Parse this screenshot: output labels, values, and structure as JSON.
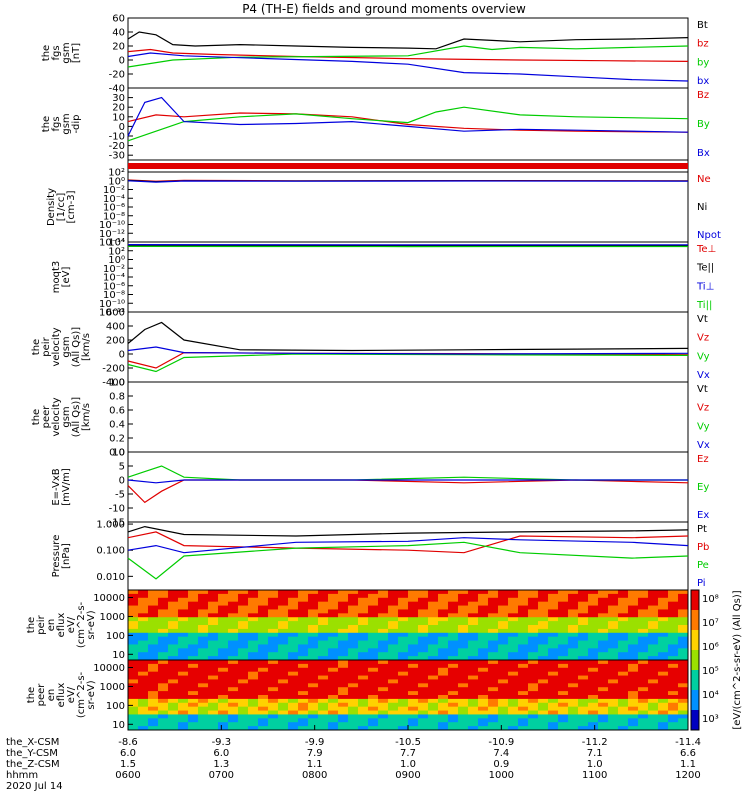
{
  "title": "P4 (TH-E) fields and ground moments overview",
  "chart_data": [
    {
      "type": "line",
      "ylabel": [
        "the",
        "fgs",
        "gsm",
        "[nT]"
      ],
      "ylim": [
        -40,
        60
      ],
      "ticks": [
        "60",
        "40",
        "20",
        "0",
        "-20",
        "-40"
      ],
      "tick_values": [
        60,
        40,
        20,
        0,
        -20,
        -40
      ],
      "series": [
        {
          "name": "Bt",
          "color": "#000000",
          "x": [
            0,
            0.02,
            0.05,
            0.08,
            0.12,
            0.2,
            0.3,
            0.4,
            0.5,
            0.55,
            0.6,
            0.65,
            0.7,
            0.8,
            0.9,
            1.0
          ],
          "y": [
            30,
            40,
            36,
            22,
            20,
            22,
            20,
            18,
            17,
            16,
            30,
            28,
            26,
            29,
            30,
            32
          ]
        },
        {
          "name": "bz",
          "color": "#e00000",
          "x": [
            0,
            0.04,
            0.08,
            0.15,
            0.3,
            0.5,
            0.7,
            0.85,
            1.0
          ],
          "y": [
            12,
            15,
            10,
            8,
            5,
            2,
            0,
            -1,
            -2
          ]
        },
        {
          "name": "by",
          "color": "#00cc00",
          "x": [
            0,
            0.04,
            0.08,
            0.2,
            0.35,
            0.5,
            0.6,
            0.65,
            0.7,
            0.8,
            0.9,
            1.0
          ],
          "y": [
            -10,
            -5,
            0,
            4,
            5,
            6,
            20,
            15,
            18,
            16,
            18,
            20
          ]
        },
        {
          "name": "bx",
          "color": "#0000dd",
          "x": [
            0,
            0.04,
            0.1,
            0.25,
            0.4,
            0.5,
            0.6,
            0.7,
            0.8,
            0.9,
            1.0
          ],
          "y": [
            5,
            10,
            6,
            2,
            -2,
            -6,
            -18,
            -20,
            -24,
            -28,
            -30
          ]
        }
      ]
    },
    {
      "type": "line",
      "ylabel": [
        "the",
        "fgs",
        "gsm",
        "-dip"
      ],
      "ylim": [
        -35,
        40
      ],
      "ticks": [
        "30",
        "20",
        "10",
        "0",
        "-10",
        "-20",
        "-30"
      ],
      "tick_values": [
        30,
        20,
        10,
        0,
        -10,
        -20,
        -30
      ],
      "series": [
        {
          "name": "Bz",
          "color": "#e00000",
          "x": [
            0,
            0.05,
            0.1,
            0.2,
            0.3,
            0.4,
            0.5,
            0.6,
            0.7,
            0.8,
            1.0
          ],
          "y": [
            5,
            12,
            10,
            14,
            13,
            10,
            2,
            -2,
            -4,
            -5,
            -6
          ]
        },
        {
          "name": "By",
          "color": "#00cc00",
          "x": [
            0,
            0.05,
            0.1,
            0.2,
            0.3,
            0.4,
            0.5,
            0.55,
            0.6,
            0.7,
            0.8,
            1.0
          ],
          "y": [
            -15,
            -5,
            5,
            10,
            13,
            8,
            4,
            15,
            20,
            12,
            10,
            8
          ]
        },
        {
          "name": "Bx",
          "color": "#0000dd",
          "x": [
            0,
            0.03,
            0.06,
            0.1,
            0.2,
            0.3,
            0.4,
            0.5,
            0.6,
            0.7,
            0.8,
            1.0
          ],
          "y": [
            -10,
            25,
            30,
            5,
            2,
            3,
            5,
            0,
            -5,
            -3,
            -4,
            -6
          ]
        }
      ]
    },
    {
      "type": "line",
      "ylabel": [
        "Density",
        "[1/cc]",
        "[cm-3]"
      ],
      "ylog": true,
      "ylim": [
        1e-14,
        100
      ],
      "ticks": [
        "10²",
        "10⁰",
        "10⁻²",
        "10⁻⁴",
        "10⁻⁶",
        "10⁻⁸",
        "10⁻¹⁰",
        "10⁻¹²",
        "10⁻¹⁴"
      ],
      "tick_values": [
        100,
        1,
        0.01,
        0.0001,
        1e-06,
        1e-08,
        1e-10,
        1e-12,
        1e-14
      ],
      "series": [
        {
          "name": "Ne",
          "color": "#e00000",
          "x": [
            0,
            0.05,
            0.1,
            0.3,
            0.6,
            1.0
          ],
          "y": [
            1.5,
            0.8,
            1.2,
            1.0,
            1.1,
            1.0
          ]
        },
        {
          "name": "Ni",
          "color": "#000000",
          "x": [
            0,
            0.05,
            0.1,
            0.3,
            0.6,
            1.0
          ],
          "y": [
            1.2,
            0.6,
            1.0,
            0.9,
            1.0,
            0.9
          ]
        },
        {
          "name": "Npot",
          "color": "#0000dd",
          "x": [
            0,
            0.05,
            0.1,
            0.3,
            0.6,
            1.0
          ],
          "y": [
            1.0,
            0.5,
            0.9,
            0.8,
            0.9,
            0.8
          ]
        }
      ]
    },
    {
      "type": "line",
      "ylabel": [
        "moqt3",
        "[eV]"
      ],
      "ylog": true,
      "ylim": [
        1e-12,
        10000
      ],
      "ticks": [
        "10⁴",
        "10²",
        "10⁰",
        "10⁻²",
        "10⁻⁴",
        "10⁻⁶",
        "10⁻⁸",
        "10⁻¹⁰",
        "10⁻¹²"
      ],
      "tick_values": [
        10000,
        100,
        1,
        0.01,
        0.0001,
        1e-06,
        1e-08,
        1e-10,
        1e-12
      ],
      "series": [
        {
          "name": "Te⊥",
          "color": "#e00000",
          "x": [
            0,
            0.5,
            1.0
          ],
          "y": [
            1500,
            1300,
            1400
          ]
        },
        {
          "name": "Te||",
          "color": "#000000",
          "x": [
            0,
            0.5,
            1.0
          ],
          "y": [
            1800,
            1600,
            1700
          ]
        },
        {
          "name": "Ti⊥",
          "color": "#0000dd",
          "x": [
            0,
            0.5,
            1.0
          ],
          "y": [
            2500,
            2200,
            2300
          ]
        },
        {
          "name": "Ti||",
          "color": "#00cc00",
          "x": [
            0,
            0.5,
            1.0
          ],
          "y": [
            1000,
            900,
            950
          ]
        }
      ]
    },
    {
      "type": "line",
      "ylabel": [
        "the",
        "peir",
        "velocity",
        "gsm",
        "(All Qs)]",
        "[km/s"
      ],
      "ylim": [
        -400,
        600
      ],
      "ticks": [
        "600",
        "400",
        "200",
        "0",
        "-200",
        "-400"
      ],
      "tick_values": [
        600,
        400,
        200,
        0,
        -200,
        -400
      ],
      "series": [
        {
          "name": "Vt",
          "color": "#000000",
          "x": [
            0,
            0.03,
            0.06,
            0.1,
            0.2,
            0.4,
            0.6,
            0.8,
            1.0
          ],
          "y": [
            150,
            350,
            450,
            200,
            60,
            50,
            60,
            70,
            80
          ]
        },
        {
          "name": "Vz",
          "color": "#e00000",
          "x": [
            0,
            0.05,
            0.1,
            0.3,
            0.6,
            1.0
          ],
          "y": [
            -100,
            -200,
            20,
            10,
            5,
            -10
          ]
        },
        {
          "name": "Vy",
          "color": "#00cc00",
          "x": [
            0,
            0.05,
            0.1,
            0.3,
            0.6,
            1.0
          ],
          "y": [
            -150,
            -250,
            -50,
            0,
            -10,
            -20
          ]
        },
        {
          "name": "Vx",
          "color": "#0000dd",
          "x": [
            0,
            0.05,
            0.1,
            0.3,
            0.6,
            1.0
          ],
          "y": [
            50,
            100,
            20,
            10,
            0,
            10
          ]
        }
      ]
    },
    {
      "type": "line",
      "ylabel": [
        "the",
        "peer",
        "velocity",
        "gsm",
        "(All Qs)]",
        "[km/s"
      ],
      "ylim": [
        0,
        1
      ],
      "ticks": [
        "1.0",
        "0.8",
        "0.6",
        "0.4",
        "0.2",
        "0.0"
      ],
      "tick_values": [
        1.0,
        0.8,
        0.6,
        0.4,
        0.2,
        0.0
      ],
      "series": [
        {
          "name": "Vt",
          "color": "#000000",
          "x": [],
          "y": []
        },
        {
          "name": "Vz",
          "color": "#e00000",
          "x": [],
          "y": []
        },
        {
          "name": "Vy",
          "color": "#00cc00",
          "x": [],
          "y": []
        },
        {
          "name": "Vx",
          "color": "#0000dd",
          "x": [],
          "y": []
        }
      ]
    },
    {
      "type": "line",
      "ylabel": [
        "E=-VxB",
        "[mV/m]"
      ],
      "ylim": [
        -15,
        10
      ],
      "ticks": [
        "10",
        "5",
        "0",
        "-5",
        "-10",
        "-15"
      ],
      "tick_values": [
        10,
        5,
        0,
        -5,
        -10,
        -15
      ],
      "series": [
        {
          "name": "Ez",
          "color": "#e00000",
          "x": [
            0,
            0.03,
            0.06,
            0.1,
            0.2,
            0.4,
            0.6,
            0.8,
            1.0
          ],
          "y": [
            -2,
            -8,
            -4,
            0,
            0,
            0,
            -1,
            0,
            -1
          ]
        },
        {
          "name": "Ey",
          "color": "#00cc00",
          "x": [
            0,
            0.03,
            0.06,
            0.1,
            0.2,
            0.4,
            0.6,
            0.8,
            1.0
          ],
          "y": [
            1,
            3,
            5,
            1,
            0,
            0,
            1,
            0,
            0
          ]
        },
        {
          "name": "Ex",
          "color": "#0000dd",
          "x": [
            0,
            0.05,
            0.1,
            0.3,
            0.6,
            1.0
          ],
          "y": [
            0,
            -1,
            0,
            0,
            0,
            0
          ]
        }
      ]
    },
    {
      "type": "line",
      "ylabel": [
        "Pressure",
        "[nPa]"
      ],
      "ylog": true,
      "ylim": [
        0.003,
        1.2
      ],
      "ticks": [
        "1.000",
        "0.100",
        "0.010"
      ],
      "tick_values": [
        1.0,
        0.1,
        0.01
      ],
      "series": [
        {
          "name": "Pt",
          "color": "#000000",
          "x": [
            0,
            0.03,
            0.1,
            0.3,
            0.5,
            0.7,
            0.9,
            1.0
          ],
          "y": [
            0.5,
            0.8,
            0.4,
            0.35,
            0.45,
            0.5,
            0.55,
            0.6
          ]
        },
        {
          "name": "Pb",
          "color": "#e00000",
          "x": [
            0,
            0.05,
            0.1,
            0.3,
            0.5,
            0.6,
            0.7,
            0.9,
            1.0
          ],
          "y": [
            0.3,
            0.5,
            0.15,
            0.12,
            0.1,
            0.08,
            0.35,
            0.3,
            0.35
          ]
        },
        {
          "name": "Pe",
          "color": "#00cc00",
          "x": [
            0,
            0.05,
            0.1,
            0.3,
            0.5,
            0.6,
            0.7,
            0.9,
            1.0
          ],
          "y": [
            0.05,
            0.008,
            0.06,
            0.12,
            0.15,
            0.2,
            0.08,
            0.05,
            0.06
          ]
        },
        {
          "name": "Pi",
          "color": "#0000dd",
          "x": [
            0,
            0.05,
            0.1,
            0.3,
            0.5,
            0.6,
            0.7,
            0.9,
            1.0
          ],
          "y": [
            0.1,
            0.15,
            0.08,
            0.2,
            0.22,
            0.3,
            0.25,
            0.2,
            0.15
          ]
        }
      ]
    },
    {
      "type": "heatmap",
      "ylabel": [
        "the",
        "peir",
        "en",
        "eflux",
        "eV/",
        "(cm^2-s-",
        "sr-eV)"
      ],
      "ylog": true,
      "ylim": [
        5,
        25000
      ],
      "ticks": [
        "10000",
        "1000",
        "100",
        "10"
      ],
      "tick_values": [
        10000,
        1000,
        100,
        10
      ],
      "colorbar": [
        "10⁸",
        "10⁷",
        "10⁶",
        "10⁵",
        "10⁴",
        "10³"
      ],
      "colorbar_label": "[eV/(cm^2-s-sr-eV) (All Qs)]"
    },
    {
      "type": "heatmap",
      "ylabel": [
        "the",
        "peer",
        "en",
        "eflux",
        "eV/",
        "(cm^2-s-",
        "sr-eV)"
      ],
      "ylog": true,
      "ylim": [
        5,
        25000
      ],
      "ticks": [
        "10000",
        "1000",
        "100",
        "10"
      ],
      "tick_values": [
        10000,
        1000,
        100,
        10
      ],
      "colorbar": [
        "10⁸",
        "10⁷",
        "10⁶",
        "10⁵",
        "10⁴",
        "10³"
      ],
      "colorbar_label": "[eV/(cm^2-s-sr-eV) (All Qs)]"
    }
  ],
  "x_axis": {
    "rows": [
      {
        "label": "the_X-CSM",
        "values": [
          "-8.6",
          "-9.3",
          "-9.9",
          "-10.5",
          "-10.9",
          "-11.2",
          "-11.4"
        ]
      },
      {
        "label": "the_Y-CSM",
        "values": [
          "6.0",
          "6.0",
          "7.9",
          "7.7",
          "7.4",
          "7.1",
          "6.6"
        ]
      },
      {
        "label": "the_Z-CSM",
        "values": [
          "1.5",
          "1.3",
          "1.1",
          "1.0",
          "0.9",
          "1.0",
          "1.1"
        ]
      },
      {
        "label": "hhmm",
        "values": [
          "0600",
          "0700",
          "0800",
          "0900",
          "1000",
          "1100",
          "1200"
        ]
      }
    ],
    "date": "2020 Jul 14"
  },
  "colors": {
    "black": "#000000",
    "red": "#e00000",
    "green": "#00cc00",
    "blue": "#0000dd"
  }
}
